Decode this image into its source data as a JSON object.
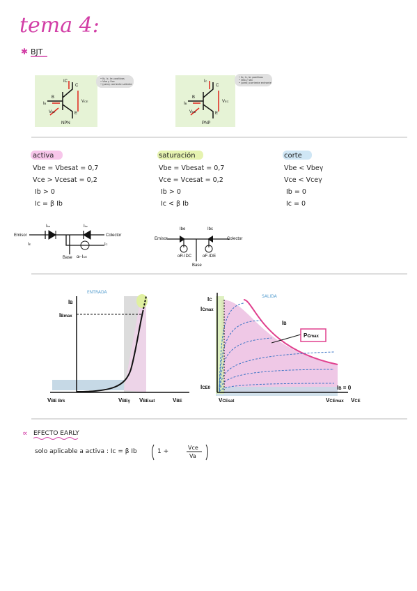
{
  "header": {
    "title": "tema 4:",
    "section": "BJT"
  },
  "transistors": [
    {
      "type": "NPN",
      "B": "B",
      "C": "C",
      "E": "E",
      "IB": [
        "I",
        "B"
      ],
      "IC": [
        "I",
        "C"
      ],
      "V1": [
        "V",
        "CE"
      ],
      "V2": [
        "V",
        "BE"
      ],
      "notes": [
        "• Ib, Ic, Ie: positivas",
        "• Vbe y Vce",
        "• (pero) corriente saliente"
      ]
    },
    {
      "type": "PNP",
      "B": "B",
      "C": "C",
      "E": "E",
      "IB": [
        "I",
        "B"
      ],
      "IC": [
        "I",
        "C"
      ],
      "V1": [
        "V",
        "EC"
      ],
      "V2": [
        "V",
        "EB"
      ],
      "notes": [
        "• Ib, Ic, Ie: positivas",
        "• Veb y Vec",
        "• (pero) corriente entrante"
      ]
    }
  ],
  "regions": [
    {
      "title": "activa",
      "lines": [
        "Vbe = Vbesat = 0,7",
        "Vce > Vcesat = 0,2",
        "Ib > 0",
        "Ic = β Ib"
      ]
    },
    {
      "title": "saturación",
      "lines": [
        "Vbe = Vbesat = 0,7",
        "Vce = Vcesat = 0,2",
        "Ib > 0",
        "Ic < β Ib"
      ]
    },
    {
      "title": "corte",
      "lines": [
        "Vbe < Vbeγ",
        "Vce < Vceγ",
        "Ib = 0",
        "Ic = 0"
      ]
    }
  ],
  "circuits": [
    {
      "emitter": "Emisor",
      "collector": "Colector",
      "base": "Base",
      "IE": [
        "I",
        "E"
      ],
      "IC": [
        "I",
        "C"
      ],
      "Ibe": [
        "I",
        "be"
      ],
      "Ibc": [
        "I",
        "bc"
      ],
      "source": [
        "α",
        "F",
        "·I",
        "DE"
      ]
    },
    {
      "emitter": "Emisor",
      "collector": "Colector",
      "base": "Base",
      "Ibe": [
        "I",
        "be"
      ],
      "Ibc": [
        "I",
        "bc"
      ],
      "source1": "αR·IDC",
      "source2": "αF·IDE"
    }
  ],
  "input_graph": {
    "title": "ENTRADA",
    "y": [
      "I",
      "B"
    ],
    "ymax": [
      "I",
      "Bmax"
    ],
    "x": [
      "V",
      "BE"
    ],
    "x1": [
      "V",
      "BE Brk"
    ],
    "x2": [
      "V",
      "BEγ"
    ],
    "x3": [
      "V",
      "BEsat"
    ]
  },
  "output_graph": {
    "title": "SALIDA",
    "y": [
      "I",
      "C"
    ],
    "ymax": [
      "I",
      "Cmax"
    ],
    "curve": [
      "I",
      "B"
    ],
    "power": [
      "Pc",
      "max"
    ],
    "leak": [
      "I",
      "CE0"
    ],
    "zero": [
      "I",
      "B",
      " = 0"
    ],
    "x": [
      "V",
      "CE"
    ],
    "x1": [
      "V",
      "CEsat"
    ],
    "x2": [
      "V",
      "CEmax"
    ]
  },
  "early": {
    "title": "EFECTO EARLY",
    "prefix": "solo aplicable a activa :",
    "formula": "Ic = β Ib",
    "one": "1 +",
    "num": "Vce",
    "den": "Va"
  }
}
